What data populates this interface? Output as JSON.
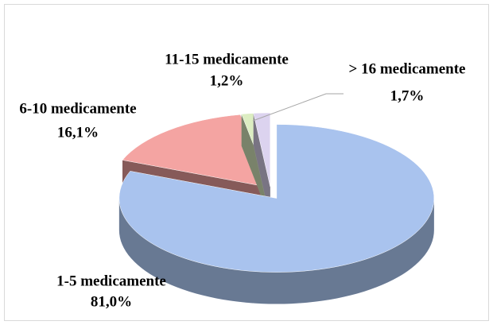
{
  "chart_data": {
    "type": "pie",
    "categories": [
      "1-5 medicamente",
      "6-10 medicamente",
      "11-15 medicamente",
      "> 16 medicamente"
    ],
    "values": [
      81.0,
      16.1,
      1.2,
      1.7
    ],
    "value_labels": [
      "81,0%",
      "16,1%",
      "1,2%",
      "1,7%"
    ],
    "colors": [
      "#a9c3ee",
      "#f4a4a2",
      "#dcedc2",
      "#dcd3ef"
    ]
  }
}
